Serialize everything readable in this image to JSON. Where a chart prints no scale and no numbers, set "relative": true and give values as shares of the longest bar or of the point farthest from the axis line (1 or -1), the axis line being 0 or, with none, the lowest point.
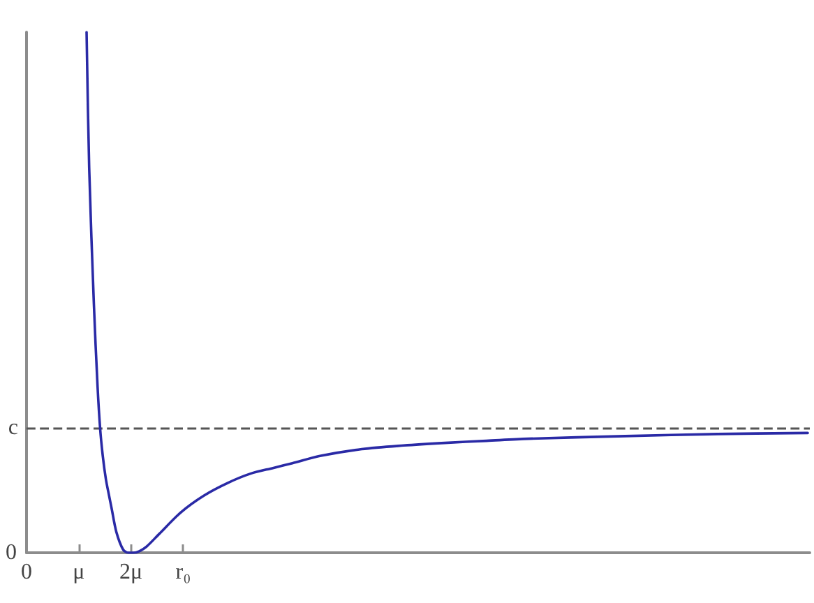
{
  "chart_data": {
    "type": "line",
    "relative": true,
    "x": [
      1.15,
      1.2,
      1.29,
      1.36,
      1.41,
      1.46,
      1.52,
      1.58,
      1.63,
      1.72,
      1.85,
      1.95,
      2.05,
      2.16,
      2.3,
      2.52,
      2.96,
      3.4,
      3.85,
      4.29,
      4.73,
      5.09,
      5.62,
      6.42,
      7.22,
      8.01,
      8.81,
      9.61,
      11.46,
      13.23,
      14.96
    ],
    "values": [
      1,
      0.739,
      0.477,
      0.32,
      0.238,
      0.186,
      0.141,
      0.11,
      0.085,
      0.04,
      0.006,
      0,
      0,
      0.003,
      0.012,
      0.034,
      0.078,
      0.11,
      0.134,
      0.152,
      0.163,
      0.172,
      0.186,
      0.199,
      0.206,
      0.211,
      0.215,
      0.219,
      0.224,
      0.228,
      0.23
    ],
    "color": "#2a2aa6",
    "marker": "none",
    "line_style": "solid",
    "xlim": [
      0,
      15
    ],
    "xticks": [
      0,
      {
        "value": 1,
        "label": "μ"
      },
      {
        "value": 2,
        "label": "2μ"
      },
      {
        "value": 3,
        "label": "r₀"
      }
    ],
    "ref_lines": [
      {
        "axis": "y",
        "value": 0.238,
        "label": "c",
        "color": "#555555",
        "line_style": "dashed"
      }
    ],
    "annotations": [
      "0"
    ]
  }
}
